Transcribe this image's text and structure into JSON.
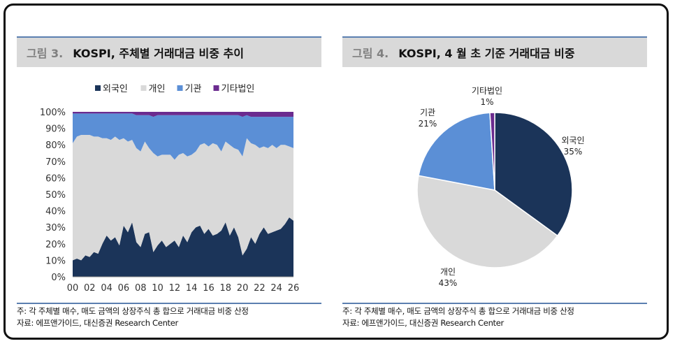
{
  "left": {
    "fig_num": "그림 3.",
    "title": "KOSPI, 주체별 거래대금 비중 추이",
    "note": "주: 각 주체별 매수, 매도 금액의 상장주식 총 합으로 거래대금 비중 산정",
    "source": "자료: 에프앤가이드, 대신증권 Research Center"
  },
  "right": {
    "fig_num": "그림 4.",
    "title": "KOSPI, 4 월 초 기준 거래대금 비중",
    "note": "주: 각 주체별 매수, 매도 금액의 상장주식 총 합으로 거래대금 비중 산정",
    "source": "자료: 에프앤가이드, 대신증권 Research Center"
  },
  "chart_data": [
    {
      "type": "area",
      "stacked": true,
      "title": "KOSPI, 주체별 거래대금 비중 추이",
      "x_tick_labels": [
        "00",
        "02",
        "04",
        "06",
        "08",
        "10",
        "12",
        "14",
        "16",
        "18",
        "20",
        "22",
        "24",
        "26"
      ],
      "y_tick_labels": [
        "0%",
        "10%",
        "20%",
        "30%",
        "40%",
        "50%",
        "60%",
        "70%",
        "80%",
        "90%",
        "100%"
      ],
      "ylim": [
        0,
        100
      ],
      "xlim": [
        2000,
        2026
      ],
      "legend_position": "top",
      "grid": false,
      "x": [
        2000,
        2000.5,
        2001,
        2001.5,
        2002,
        2002.5,
        2003,
        2003.5,
        2004,
        2004.5,
        2005,
        2005.5,
        2006,
        2006.5,
        2007,
        2007.5,
        2008,
        2008.5,
        2009,
        2009.5,
        2010,
        2010.5,
        2011,
        2011.5,
        2012,
        2012.5,
        2013,
        2013.5,
        2014,
        2014.5,
        2015,
        2015.5,
        2016,
        2016.5,
        2017,
        2017.5,
        2018,
        2018.5,
        2019,
        2019.5,
        2020,
        2020.5,
        2021,
        2021.5,
        2022,
        2022.5,
        2023,
        2023.5,
        2024,
        2024.5,
        2025,
        2025.5,
        2026
      ],
      "series": [
        {
          "name": "외국인",
          "color": "#1b3459",
          "values": [
            10,
            11,
            10,
            13,
            12,
            15,
            14,
            20,
            25,
            22,
            24,
            19,
            31,
            27,
            33,
            21,
            18,
            26,
            27,
            15,
            19,
            22,
            18,
            20,
            22,
            18,
            25,
            21,
            27,
            30,
            31,
            26,
            29,
            25,
            26,
            28,
            33,
            25,
            30,
            24,
            13,
            17,
            24,
            20,
            26,
            30,
            26,
            27,
            28,
            29,
            32,
            36,
            34
          ]
        },
        {
          "name": "개인",
          "color": "#d9d9d9",
          "values": [
            71,
            74,
            76,
            73,
            74,
            70,
            71,
            64,
            59,
            61,
            61,
            64,
            53,
            55,
            50,
            57,
            58,
            56,
            51,
            60,
            54,
            52,
            56,
            54,
            49,
            56,
            50,
            52,
            47,
            46,
            49,
            55,
            50,
            56,
            54,
            48,
            49,
            55,
            48,
            53,
            60,
            67,
            57,
            60,
            52,
            49,
            52,
            53,
            50,
            51,
            48,
            43,
            44
          ]
        },
        {
          "name": "기관",
          "color": "#5b8fd6",
          "values": [
            18,
            14,
            13,
            13,
            13,
            14,
            14,
            15,
            15,
            16,
            14,
            16,
            15,
            17,
            16,
            20,
            22,
            16,
            20,
            22,
            25,
            24,
            24,
            24,
            27,
            24,
            23,
            25,
            24,
            22,
            18,
            17,
            19,
            17,
            18,
            22,
            16,
            18,
            20,
            21,
            24,
            14,
            16,
            17,
            19,
            18,
            19,
            17,
            19,
            17,
            17,
            18,
            19
          ]
        },
        {
          "name": "기타법인",
          "color": "#6b2b8f",
          "values": [
            1,
            1,
            1,
            1,
            1,
            1,
            1,
            1,
            1,
            1,
            1,
            1,
            1,
            1,
            1,
            2,
            2,
            2,
            2,
            3,
            2,
            2,
            2,
            2,
            2,
            2,
            2,
            2,
            2,
            2,
            2,
            2,
            2,
            2,
            2,
            2,
            2,
            2,
            2,
            2,
            3,
            2,
            3,
            3,
            3,
            3,
            3,
            3,
            3,
            3,
            3,
            3,
            3
          ]
        }
      ]
    },
    {
      "type": "pie",
      "title": "KOSPI, 4 월 초 기준 거래대금 비중",
      "slices": [
        {
          "name": "외국인",
          "value": 35,
          "label": "35%",
          "color": "#1b3459"
        },
        {
          "name": "개인",
          "value": 43,
          "label": "43%",
          "color": "#d9d9d9"
        },
        {
          "name": "기관",
          "value": 21,
          "label": "21%",
          "color": "#5b8fd6"
        },
        {
          "name": "기타법인",
          "value": 1,
          "label": "1%",
          "color": "#6b2b8f"
        }
      ]
    }
  ]
}
